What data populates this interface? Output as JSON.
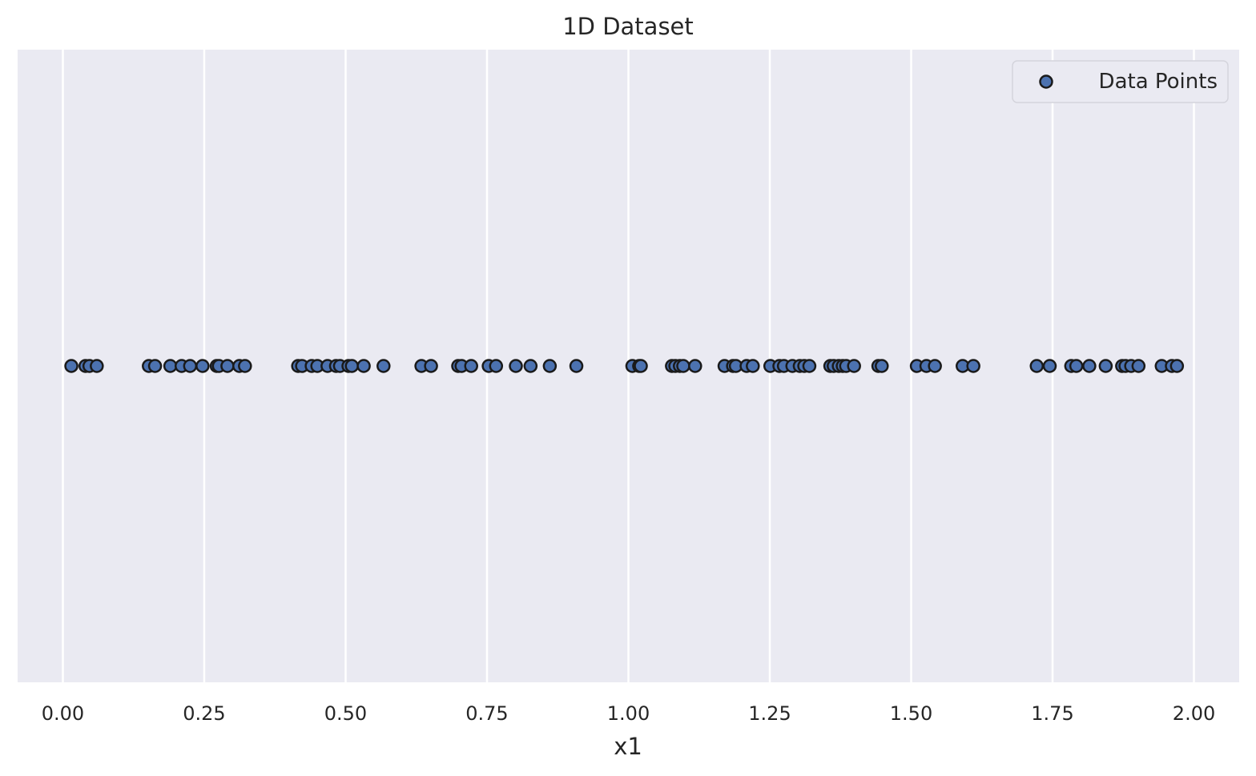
{
  "colors": {
    "plot_background": "#eaeaf2",
    "grid": "#ffffff",
    "point_fill": "#4c72b0",
    "point_edge": "#1a1a1a",
    "text": "#262626"
  },
  "chart_data": {
    "type": "scatter",
    "title": "1D Dataset",
    "xlabel": "x1",
    "ylabel": "",
    "xlim": [
      -0.08,
      2.08
    ],
    "ylim": [
      -1,
      1
    ],
    "y_ticks_visible": false,
    "x_ticks": [
      0.0,
      0.25,
      0.5,
      0.75,
      1.0,
      1.25,
      1.5,
      1.75,
      2.0
    ],
    "x_tick_labels": [
      "0.00",
      "0.25",
      "0.50",
      "0.75",
      "1.00",
      "1.25",
      "1.50",
      "1.75",
      "2.00"
    ],
    "grid": "vertical",
    "legend_position": "top-right",
    "series": [
      {
        "name": "Data Points",
        "marker": "circle",
        "y_constant": 0,
        "x": [
          0.015,
          0.04,
          0.047,
          0.06,
          0.152,
          0.163,
          0.19,
          0.21,
          0.225,
          0.247,
          0.272,
          0.276,
          0.291,
          0.312,
          0.322,
          0.416,
          0.423,
          0.44,
          0.45,
          0.468,
          0.483,
          0.49,
          0.505,
          0.511,
          0.532,
          0.567,
          0.634,
          0.651,
          0.699,
          0.705,
          0.722,
          0.753,
          0.766,
          0.801,
          0.827,
          0.861,
          0.908,
          1.007,
          1.019,
          1.022,
          1.077,
          1.083,
          1.091,
          1.097,
          1.118,
          1.17,
          1.185,
          1.19,
          1.209,
          1.22,
          1.251,
          1.267,
          1.275,
          1.29,
          1.303,
          1.311,
          1.32,
          1.357,
          1.363,
          1.372,
          1.379,
          1.385,
          1.399,
          1.442,
          1.448,
          1.51,
          1.527,
          1.542,
          1.591,
          1.61,
          1.722,
          1.745,
          1.783,
          1.792,
          1.815,
          1.844,
          1.873,
          1.879,
          1.889,
          1.902,
          1.943,
          1.961,
          1.97
        ]
      }
    ]
  }
}
